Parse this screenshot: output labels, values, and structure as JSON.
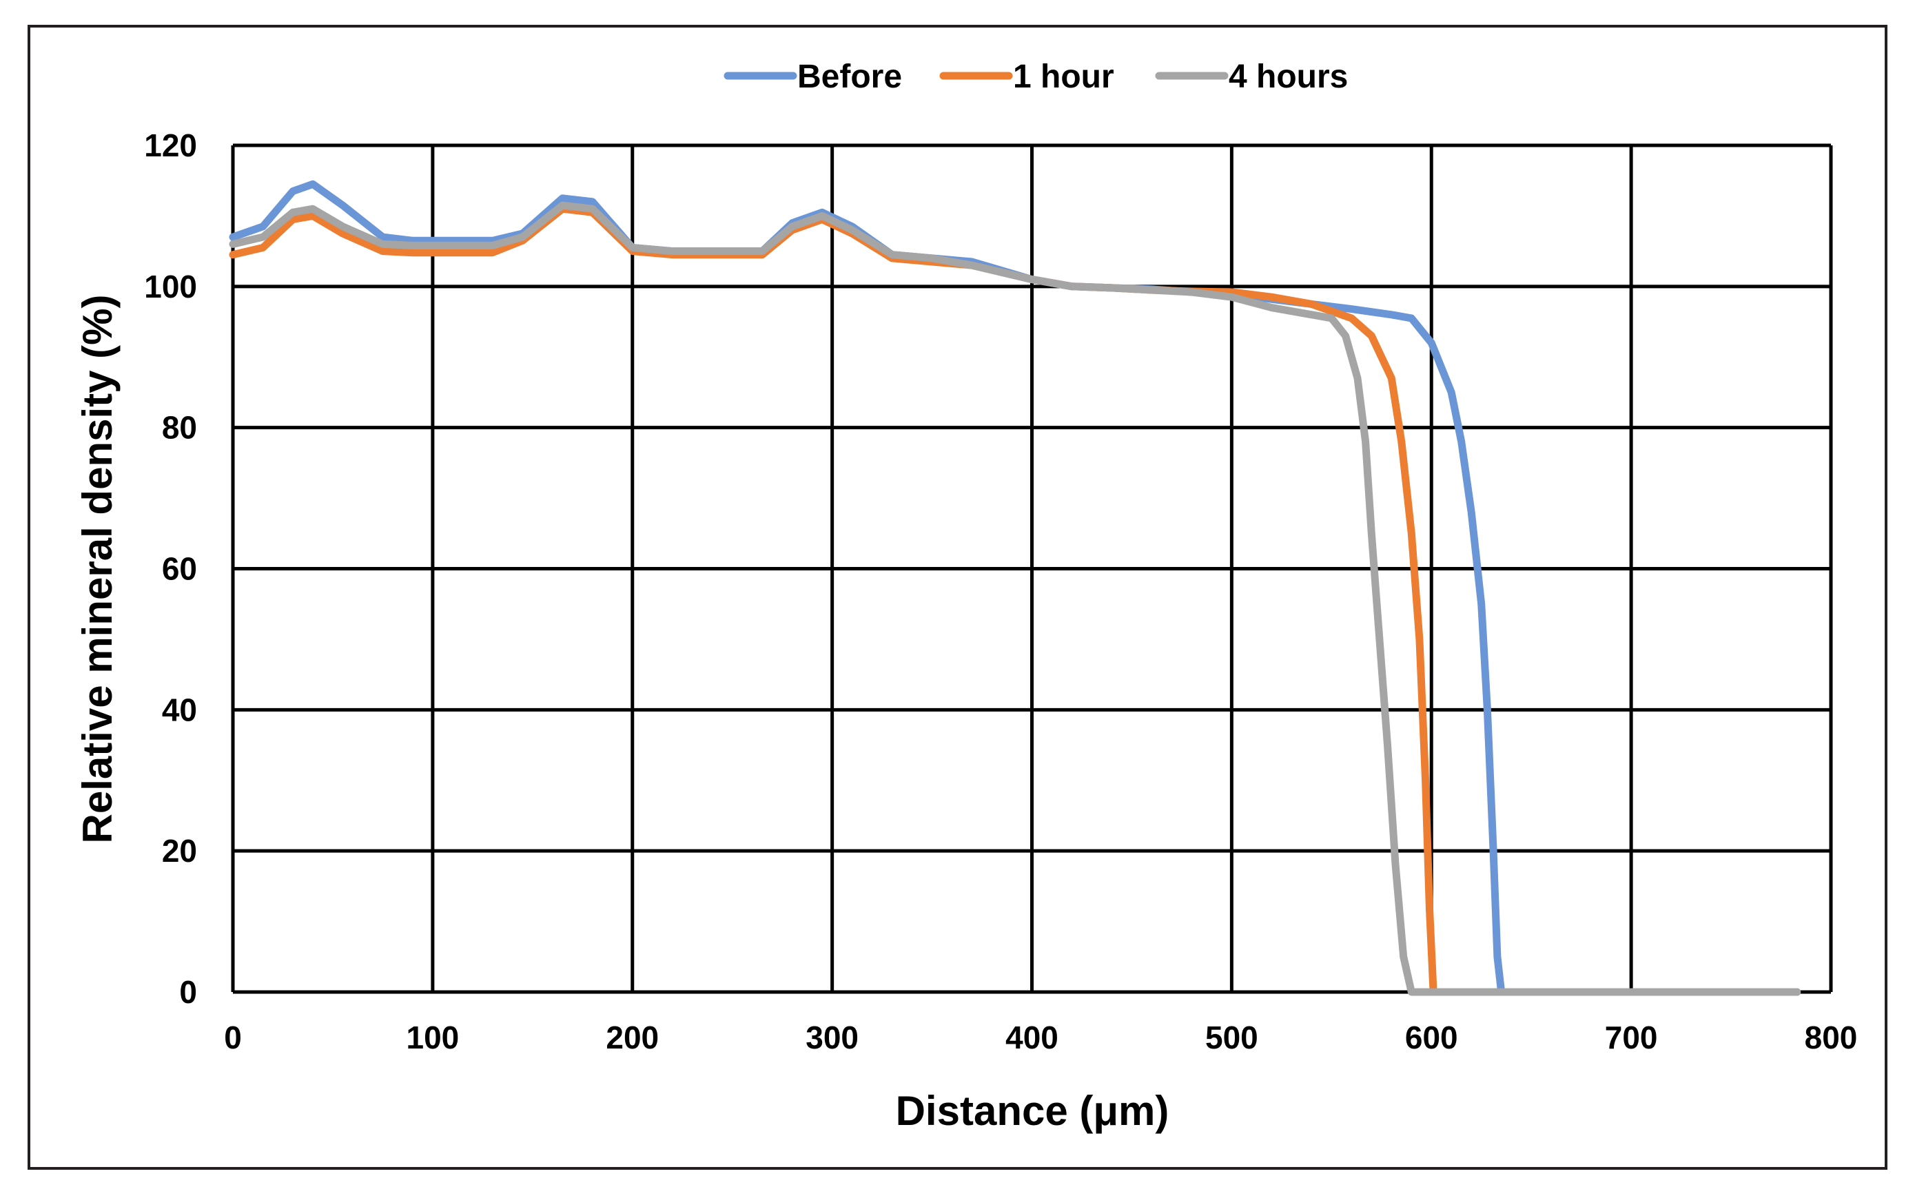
{
  "chart_data": {
    "type": "line",
    "title": "",
    "xlabel": "Distance (μm)",
    "ylabel": "Relative mineral density (%)",
    "xlim": [
      0,
      800
    ],
    "ylim": [
      0,
      120
    ],
    "xticks": [
      0,
      100,
      200,
      300,
      400,
      500,
      600,
      700,
      800
    ],
    "yticks": [
      0,
      20,
      40,
      60,
      80,
      100,
      120
    ],
    "grid": true,
    "legend_position": "top-center",
    "series": [
      {
        "name": "Before",
        "color": "#6a95d6",
        "points": [
          [
            0,
            107
          ],
          [
            15,
            108.5
          ],
          [
            30,
            113.5
          ],
          [
            40,
            114.5
          ],
          [
            55,
            111.5
          ],
          [
            75,
            107
          ],
          [
            90,
            106.5
          ],
          [
            110,
            106.5
          ],
          [
            130,
            106.5
          ],
          [
            145,
            107.5
          ],
          [
            165,
            112.5
          ],
          [
            180,
            112
          ],
          [
            200,
            105.5
          ],
          [
            220,
            105
          ],
          [
            240,
            105
          ],
          [
            265,
            105
          ],
          [
            280,
            109
          ],
          [
            295,
            110.5
          ],
          [
            310,
            108.5
          ],
          [
            330,
            104.5
          ],
          [
            350,
            104
          ],
          [
            370,
            103.5
          ],
          [
            400,
            101
          ],
          [
            420,
            100
          ],
          [
            440,
            99.8
          ],
          [
            460,
            99.6
          ],
          [
            480,
            99.2
          ],
          [
            500,
            99
          ],
          [
            520,
            98.2
          ],
          [
            540,
            97.5
          ],
          [
            560,
            96.8
          ],
          [
            580,
            96
          ],
          [
            590,
            95.5
          ],
          [
            600,
            92
          ],
          [
            610,
            85
          ],
          [
            615,
            78
          ],
          [
            620,
            68
          ],
          [
            625,
            55
          ],
          [
            628,
            40
          ],
          [
            631,
            20
          ],
          [
            633,
            5
          ],
          [
            635,
            0
          ],
          [
            783,
            0
          ]
        ]
      },
      {
        "name": "1 hour",
        "color": "#ed7d31",
        "points": [
          [
            0,
            104.5
          ],
          [
            15,
            105.5
          ],
          [
            30,
            109.5
          ],
          [
            40,
            110
          ],
          [
            55,
            107.5
          ],
          [
            75,
            105
          ],
          [
            90,
            104.8
          ],
          [
            110,
            104.8
          ],
          [
            130,
            104.8
          ],
          [
            145,
            106.5
          ],
          [
            165,
            111
          ],
          [
            180,
            110.5
          ],
          [
            200,
            105
          ],
          [
            220,
            104.5
          ],
          [
            240,
            104.5
          ],
          [
            265,
            104.5
          ],
          [
            280,
            108
          ],
          [
            295,
            109.5
          ],
          [
            310,
            107.5
          ],
          [
            330,
            104
          ],
          [
            350,
            103.5
          ],
          [
            370,
            103
          ],
          [
            400,
            101
          ],
          [
            420,
            100
          ],
          [
            440,
            99.8
          ],
          [
            460,
            99.5
          ],
          [
            480,
            99.3
          ],
          [
            500,
            99.2
          ],
          [
            520,
            98.5
          ],
          [
            540,
            97.5
          ],
          [
            560,
            95.5
          ],
          [
            570,
            93
          ],
          [
            580,
            87
          ],
          [
            585,
            78
          ],
          [
            590,
            65
          ],
          [
            594,
            50
          ],
          [
            597,
            30
          ],
          [
            599,
            12
          ],
          [
            601,
            0
          ],
          [
            783,
            0
          ]
        ]
      },
      {
        "name": "4 hours",
        "color": "#a5a5a5",
        "points": [
          [
            0,
            106
          ],
          [
            15,
            107
          ],
          [
            30,
            110.5
          ],
          [
            40,
            111
          ],
          [
            55,
            108.5
          ],
          [
            75,
            106
          ],
          [
            90,
            105.8
          ],
          [
            110,
            105.8
          ],
          [
            130,
            105.8
          ],
          [
            145,
            107
          ],
          [
            165,
            111.5
          ],
          [
            180,
            111
          ],
          [
            200,
            105.5
          ],
          [
            220,
            105
          ],
          [
            240,
            105
          ],
          [
            265,
            105
          ],
          [
            280,
            108.5
          ],
          [
            295,
            110
          ],
          [
            310,
            108
          ],
          [
            330,
            104.5
          ],
          [
            350,
            104
          ],
          [
            370,
            103
          ],
          [
            400,
            101
          ],
          [
            420,
            100
          ],
          [
            440,
            99.8
          ],
          [
            460,
            99.5
          ],
          [
            480,
            99.2
          ],
          [
            500,
            98.5
          ],
          [
            520,
            97
          ],
          [
            540,
            96
          ],
          [
            550,
            95.5
          ],
          [
            557,
            93
          ],
          [
            563,
            87
          ],
          [
            567,
            78
          ],
          [
            570,
            65
          ],
          [
            574,
            50
          ],
          [
            578,
            35
          ],
          [
            582,
            18
          ],
          [
            586,
            5
          ],
          [
            590,
            0
          ],
          [
            783,
            0
          ]
        ]
      }
    ]
  }
}
